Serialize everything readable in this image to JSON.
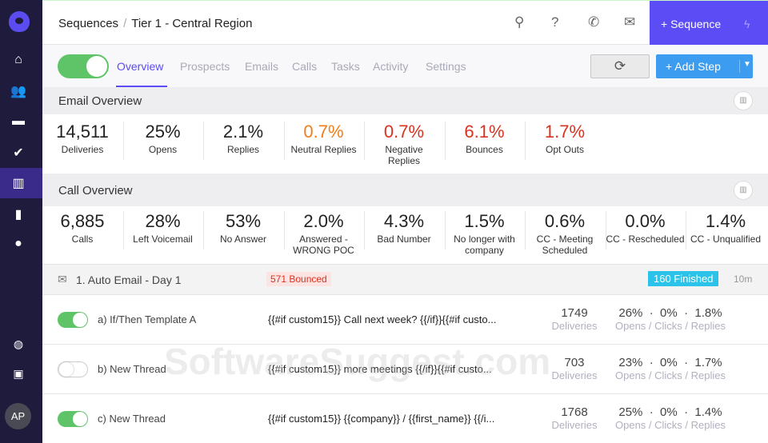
{
  "sidebar": {
    "avatar": "AP",
    "items": [
      "home",
      "people",
      "briefcase",
      "tasks",
      "sequences",
      "reports",
      "profile",
      "globe",
      "contacts"
    ]
  },
  "header": {
    "breadcrumb_root": "Sequences",
    "breadcrumb_sep": "/",
    "breadcrumb_current": "Tier 1 - Central Region",
    "new_sequence": "+ Sequence"
  },
  "tabs": [
    {
      "label": "Overview"
    },
    {
      "label": "Prospects"
    },
    {
      "label": "Emails"
    },
    {
      "label": "Calls"
    },
    {
      "label": "Tasks"
    },
    {
      "label": "Activity"
    },
    {
      "label": "Settings"
    }
  ],
  "actions": {
    "add_step": "+ Add Step"
  },
  "email_overview": {
    "title": "Email Overview",
    "stats": [
      {
        "value": "14,511",
        "label": "Deliveries"
      },
      {
        "value": "25%",
        "label": "Opens"
      },
      {
        "value": "2.1%",
        "label": "Replies"
      },
      {
        "value": "0.7%",
        "label": "Neutral Replies"
      },
      {
        "value": "0.7%",
        "label": "Negative Replies"
      },
      {
        "value": "6.1%",
        "label": "Bounces"
      },
      {
        "value": "1.7%",
        "label": "Opt Outs"
      }
    ]
  },
  "call_overview": {
    "title": "Call Overview",
    "stats": [
      {
        "value": "6,885",
        "label": "Calls"
      },
      {
        "value": "28%",
        "label": "Left Voicemail"
      },
      {
        "value": "53%",
        "label": "No Answer"
      },
      {
        "value": "2.0%",
        "label": "Answered - WRONG POC"
      },
      {
        "value": "4.3%",
        "label": "Bad Number"
      },
      {
        "value": "1.5%",
        "label": "No longer with company"
      },
      {
        "value": "0.6%",
        "label": "CC - Meeting Scheduled"
      },
      {
        "value": "0.0%",
        "label": "CC - Rescheduled"
      },
      {
        "value": "1.4%",
        "label": "CC - Unqualified"
      }
    ]
  },
  "step": {
    "title": "1. Auto Email - Day 1",
    "bounced": "571 Bounced",
    "finished": "160 Finished",
    "duration": "10m",
    "colors": {
      "bounced_bg": "#fde3e1",
      "bounced_fg": "#d9331f",
      "finished_bg": "#2cc3ea"
    },
    "variants": [
      {
        "name": "a) If/Then Template A",
        "enabled": true,
        "template": "{{#if custom15}} Call next week? {{/if}}{{#if custo...",
        "deliveries": "1749",
        "deliveries_label": "Deliveries",
        "rates": "26%  ·  0%  ·  1.8%",
        "rates_label": "Opens / Clicks / Replies"
      },
      {
        "name": "b) New Thread",
        "enabled": false,
        "template": "{{#if custom15}} more meetings {{/if}}{{#if custo...",
        "deliveries": "703",
        "deliveries_label": "Deliveries",
        "rates": "23%  ·  0%  ·  1.7%",
        "rates_label": "Opens / Clicks / Replies"
      },
      {
        "name": "c) New Thread",
        "enabled": true,
        "template": "{{#if custom15}} {{company}} / {{first_name}} {{/i...",
        "deliveries": "1768",
        "deliveries_label": "Deliveries",
        "rates": "25%  ·  0%  ·  1.4%",
        "rates_label": "Opens / Clicks / Replies"
      }
    ]
  },
  "watermark": "SoftwareSuggest.com"
}
